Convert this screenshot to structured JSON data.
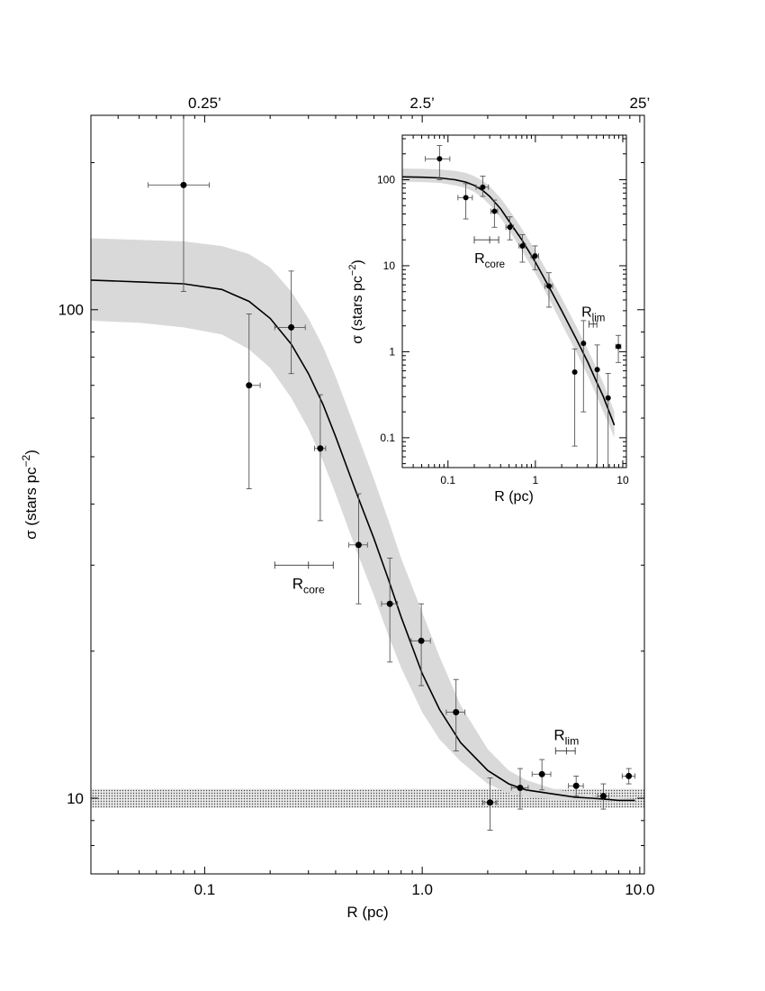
{
  "chart_data": [
    {
      "type": "scatter",
      "title": "",
      "xlabel": "R (pc)",
      "ylabel_main": "σ (stars pc",
      "ylabel_sup": "−2",
      "ylabel_close": ")",
      "xscale": "log",
      "yscale": "log",
      "xlim": [
        0.03,
        10.5
      ],
      "ylim": [
        7,
        250
      ],
      "x_tick_labels": [
        "0.1",
        "1.0",
        "10.0"
      ],
      "x_tick_values": [
        0.1,
        1.0,
        10.0
      ],
      "y_tick_labels": [
        "10",
        "100"
      ],
      "y_tick_values": [
        10,
        100
      ],
      "top_axis": {
        "tick_labels": [
          "0.25’",
          "2.5’",
          "25’"
        ],
        "tick_values": [
          0.1,
          1.0,
          10.0
        ]
      },
      "series": [
        {
          "type": "scatter",
          "x": [
            0.08,
            0.16,
            0.25,
            0.34,
            0.51,
            0.71,
            0.99,
            1.43,
            2.05,
            2.82,
            3.55,
            5.1,
            6.8,
            8.9
          ],
          "y": [
            180,
            70,
            92,
            52,
            33,
            25,
            21,
            15,
            9.8,
            10.5,
            11.2,
            10.6,
            10.1,
            11.1
          ],
          "y_err": [
            [
              71,
              27,
              18,
              15,
              8,
              6,
              4,
              2.5,
              1.2,
              1.0,
              0.8,
              0.5,
              0.6,
              0.4
            ],
            [
              70,
              28,
              28,
              15,
              9,
              6,
              4,
              2.5,
              1.2,
              1.0,
              0.8,
              0.5,
              0.6,
              0.4
            ]
          ],
          "x_err": [
            [
              0.025,
              0.0,
              0.04,
              0.02,
              0.05,
              0.06,
              0.1,
              0.14,
              0.15,
              0.25,
              0.35,
              0.4,
              0.4,
              0.6
            ],
            [
              0.025,
              0.02,
              0.04,
              0.02,
              0.05,
              0.06,
              0.1,
              0.14,
              0.15,
              0.25,
              0.35,
              0.4,
              0.4,
              0.6
            ]
          ]
        },
        {
          "type": "line",
          "x": [
            0.03,
            0.05,
            0.08,
            0.12,
            0.16,
            0.2,
            0.25,
            0.3,
            0.35,
            0.4,
            0.5,
            0.6,
            0.7,
            0.8,
            1.0,
            1.2,
            1.5,
            2.0,
            2.5,
            3.0,
            4.0,
            5.0,
            6.0,
            7.0,
            8.0,
            9.0,
            9.5
          ],
          "y": [
            115,
            114,
            113,
            110,
            104,
            96,
            85,
            74,
            64,
            55,
            42,
            34,
            28,
            23.5,
            18,
            15.2,
            13,
            11.4,
            10.7,
            10.4,
            10.2,
            10.05,
            10.0,
            9.95,
            9.9,
            9.9,
            9.9
          ]
        },
        {
          "type": "area",
          "x": [
            0.03,
            0.05,
            0.08,
            0.12,
            0.16,
            0.2,
            0.25,
            0.3,
            0.35,
            0.4,
            0.5,
            0.6,
            0.7,
            0.8,
            1.0,
            1.2,
            1.5,
            2.0,
            2.5,
            3.0,
            4.0,
            5.0,
            6.0,
            7.0,
            8.0,
            9.0,
            9.5
          ],
          "lower": [
            95,
            94,
            92,
            89,
            83,
            76,
            66,
            57,
            49,
            42,
            32,
            26,
            21.5,
            18.5,
            15,
            13.2,
            11.9,
            10.7,
            10.25,
            10.05,
            9.95,
            9.9,
            9.88,
            9.86,
            9.85,
            9.85,
            9.85
          ],
          "upper": [
            140,
            139,
            138,
            135,
            130,
            122,
            109,
            96,
            84,
            73,
            56,
            45,
            37,
            31,
            24,
            19.5,
            15.5,
            12.6,
            11.4,
            10.9,
            10.45,
            10.25,
            10.12,
            10.05,
            10.0,
            9.98,
            9.96
          ]
        }
      ],
      "background_band": {
        "y_low": 9.55,
        "y_high": 10.45
      },
      "annotations": [
        {
          "name": "rcore",
          "text": "R",
          "sub": "core",
          "x_center": 0.3,
          "x_low": 0.21,
          "x_high": 0.39,
          "y": 30
        },
        {
          "name": "rlim",
          "text": "R",
          "sub": "lim",
          "x_center": 4.6,
          "x_low": 4.1,
          "x_high": 5.05,
          "y": 12.5
        }
      ]
    },
    {
      "type": "scatter",
      "inset": true,
      "xlabel": "R (pc)",
      "ylabel_main": "σ (stars pc",
      "ylabel_sup": "−2",
      "ylabel_close": ")",
      "xscale": "log",
      "yscale": "log",
      "xlim": [
        0.03,
        11
      ],
      "ylim": [
        0.045,
        330
      ],
      "x_tick_labels": [
        "0.1",
        "1",
        "10"
      ],
      "x_tick_values": [
        0.1,
        1,
        10
      ],
      "y_tick_labels": [
        "0.1",
        "1",
        "10",
        "100"
      ],
      "y_tick_values": [
        0.1,
        1,
        10,
        100
      ],
      "series": [
        {
          "type": "scatter",
          "x": [
            0.08,
            0.16,
            0.25,
            0.34,
            0.51,
            0.71,
            0.99,
            1.43,
            2.82,
            3.55,
            5.1,
            6.8,
            8.9
          ],
          "y": [
            175,
            62,
            82,
            43,
            28,
            17,
            13,
            5.8,
            0.58,
            1.25,
            0.62,
            0.29,
            1.15
          ],
          "y_err": [
            [
              75,
              27,
              18,
              15,
              8,
              6,
              4,
              2.5,
              0.5,
              1.05,
              0.58,
              0.27,
              0.4
            ],
            [
              75,
              28,
              28,
              15,
              9,
              6,
              4,
              2.5,
              0.5,
              1.05,
              0.58,
              0.27,
              0.4
            ]
          ],
          "x_err": [
            [
              0.025,
              0.03,
              0.04,
              0.03,
              0.05,
              0.06,
              0.1,
              0.14,
              0.0,
              0.0,
              0.0,
              0.0,
              0.6
            ],
            [
              0.025,
              0.03,
              0.04,
              0.03,
              0.05,
              0.06,
              0.1,
              0.14,
              0.0,
              0.0,
              0.0,
              0.0,
              0.6
            ]
          ]
        },
        {
          "type": "line",
          "x": [
            0.03,
            0.05,
            0.08,
            0.12,
            0.16,
            0.2,
            0.25,
            0.3,
            0.4,
            0.5,
            0.7,
            1.0,
            1.5,
            2.0,
            3.0,
            4.0,
            5.0,
            6.0,
            7.0,
            8.0
          ],
          "y": [
            108,
            107,
            105,
            100,
            94,
            86,
            75,
            64,
            46,
            33,
            20,
            11,
            5.2,
            3.0,
            1.35,
            0.75,
            0.45,
            0.3,
            0.2,
            0.14
          ]
        },
        {
          "type": "area",
          "x": [
            0.03,
            0.05,
            0.08,
            0.12,
            0.16,
            0.2,
            0.25,
            0.3,
            0.4,
            0.5,
            0.7,
            1.0,
            1.5,
            2.0,
            3.0,
            4.0,
            5.0,
            6.0,
            7.0,
            8.0
          ],
          "lower": [
            95,
            94,
            92,
            86,
            80,
            72,
            61,
            51,
            36,
            26,
            15,
            8.2,
            3.8,
            2.1,
            0.95,
            0.52,
            0.31,
            0.2,
            0.14,
            0.1
          ],
          "upper": [
            135,
            134,
            132,
            127,
            120,
            110,
            97,
            84,
            61,
            45,
            27,
            15,
            7.2,
            4.2,
            1.9,
            1.05,
            0.65,
            0.43,
            0.29,
            0.2
          ]
        }
      ],
      "annotations": [
        {
          "name": "rcore",
          "text": "R",
          "sub": "core",
          "x_center": 0.3,
          "x_low": 0.2,
          "x_high": 0.38,
          "y": 20
        },
        {
          "name": "rlim",
          "text": "R",
          "sub": "lim",
          "x_center": 4.6,
          "x_low": 4.1,
          "x_high": 5.05,
          "y": 2.1
        }
      ]
    }
  ]
}
